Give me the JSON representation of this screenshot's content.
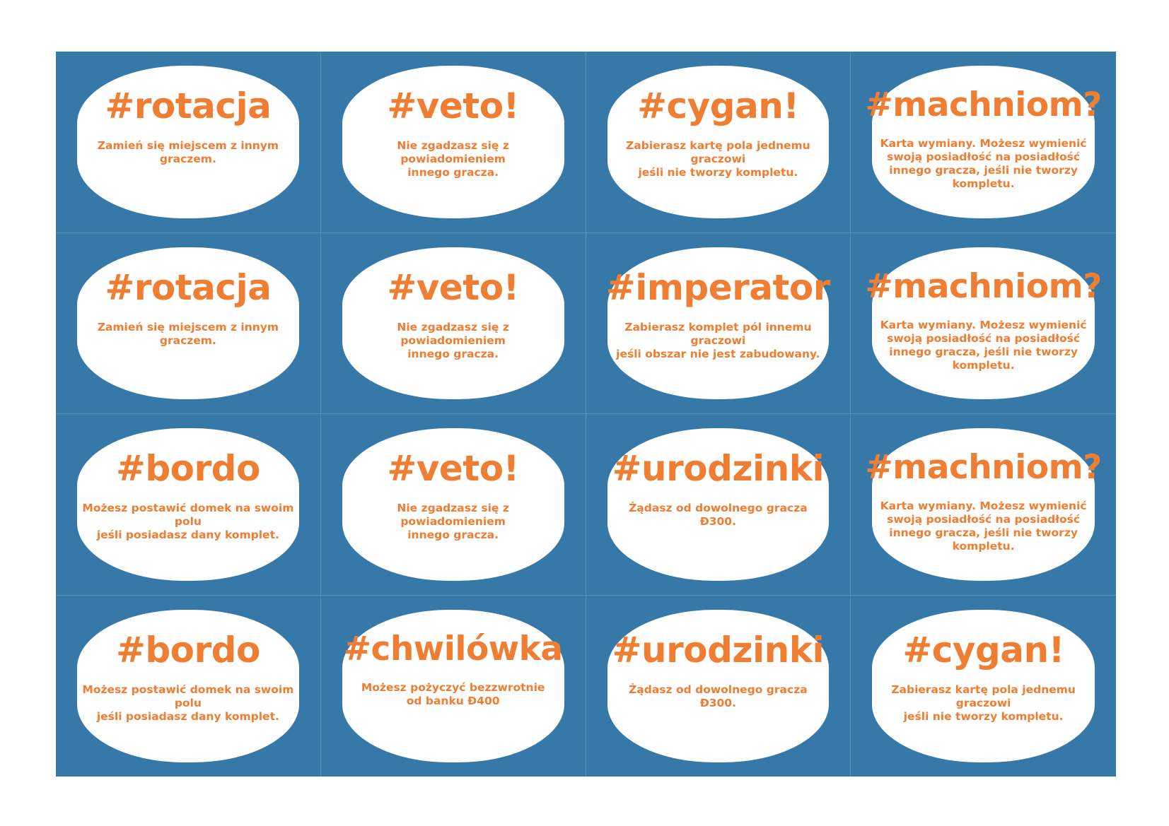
{
  "cards": [
    {
      "title": "#rotacja",
      "desc": "Zamień się miejscem z innym graczem."
    },
    {
      "title": "#veto!",
      "desc": "Nie zgadzasz się z powiadomieniem\ninnego gracza."
    },
    {
      "title": "#cygan!",
      "desc": "Zabierasz kartę pola jednemu graczowi\njeśli nie tworzy kompletu."
    },
    {
      "title": "#machniom?",
      "desc": "Karta wymiany. Możesz wymienić\nswoją posiadłość na posiadłość\ninnego gracza, jeśli nie tworzy\nkompletu."
    },
    {
      "title": "#rotacja",
      "desc": "Zamień się miejscem z innym graczem."
    },
    {
      "title": "#veto!",
      "desc": "Nie zgadzasz się z powiadomieniem\ninnego gracza."
    },
    {
      "title": "#imperator",
      "desc": "Zabierasz komplet pól innemu graczowi\njeśli obszar nie jest zabudowany."
    },
    {
      "title": "#machniom?",
      "desc": "Karta wymiany. Możesz wymienić\nswoją posiadłość na posiadłość\ninnego gracza, jeśli nie tworzy\nkompletu."
    },
    {
      "title": "#bordo",
      "desc": "Możesz postawić domek na swoim polu\njeśli posiadasz dany komplet."
    },
    {
      "title": "#veto!",
      "desc": "Nie zgadzasz się z powiadomieniem\ninnego gracza."
    },
    {
      "title": "#urodzinki",
      "desc": "Żądasz od dowolnego gracza Ð300."
    },
    {
      "title": "#machniom?",
      "desc": "Karta wymiany. Możesz wymienić\nswoją posiadłość na posiadłość\ninnego gracza, jeśli nie tworzy\nkompletu."
    },
    {
      "title": "#bordo",
      "desc": "Możesz postawić domek na swoim polu\njeśli posiadasz dany komplet."
    },
    {
      "title": "#chwilówka",
      "desc": "Możesz pożyczyć bezzwrotnie\nod banku Ð400"
    },
    {
      "title": "#urodzinki",
      "desc": "Żądasz od dowolnego gracza Ð300."
    },
    {
      "title": "#cygan!",
      "desc": "Zabierasz kartę pola jednemu graczowi\njeśli nie tworzy kompletu."
    }
  ],
  "colors": {
    "background": "#3679a8",
    "card": "#ffffff",
    "text": "#ef7d32"
  }
}
